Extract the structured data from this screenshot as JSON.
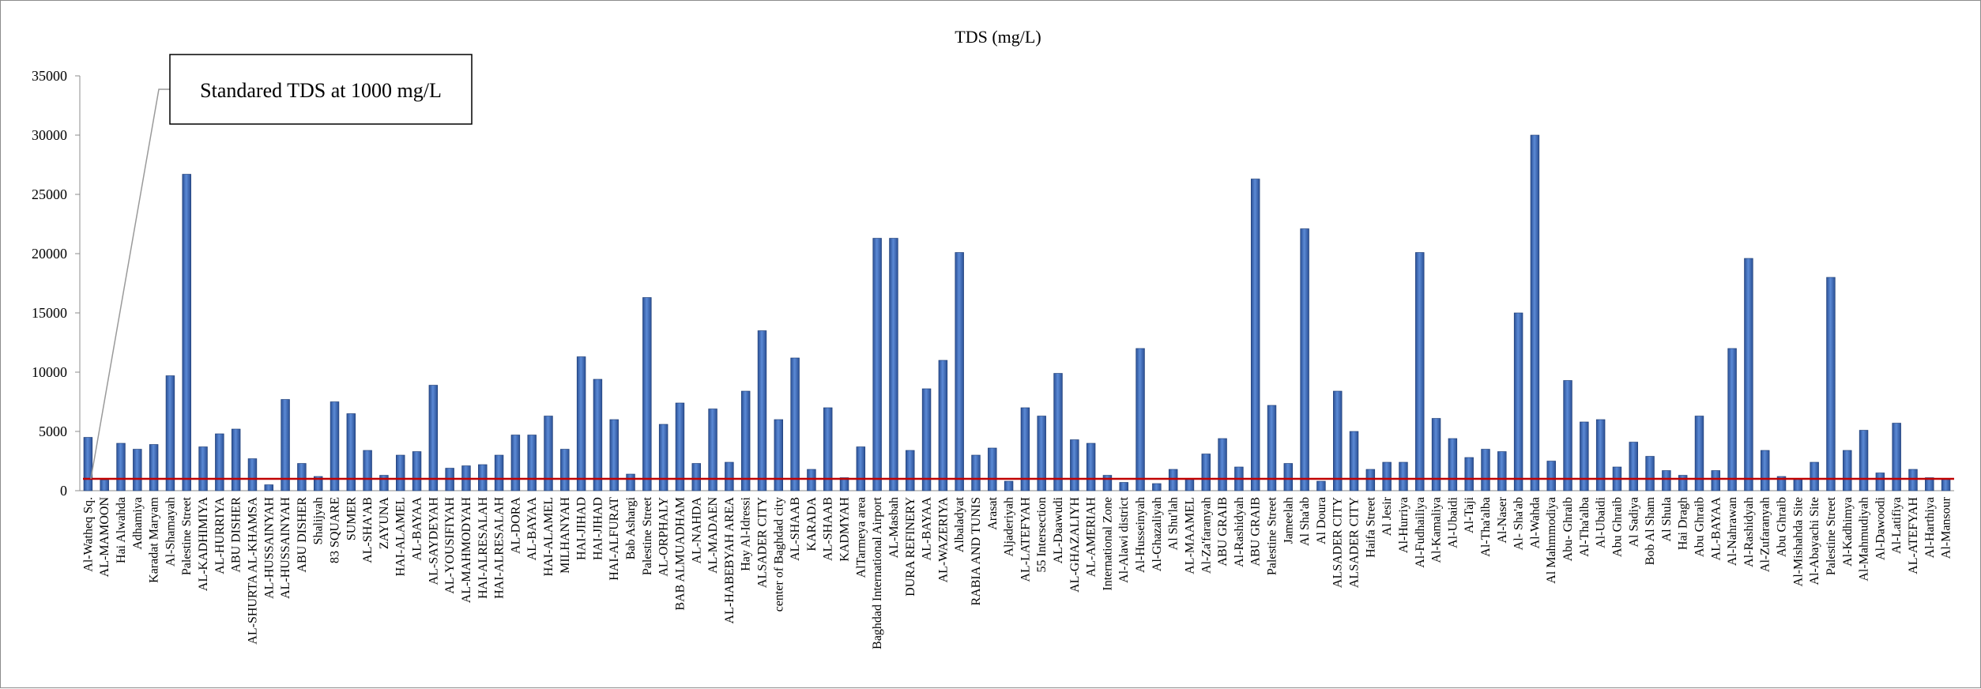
{
  "chart_data": {
    "type": "bar",
    "title": "TDS (mg/L)",
    "xlabel": "",
    "ylabel": "",
    "ylim": [
      0,
      35000
    ],
    "yticks": [
      0,
      5000,
      10000,
      15000,
      20000,
      25000,
      30000,
      35000
    ],
    "grid": false,
    "bar_color": "#4472c4",
    "reference_line": {
      "value": 1000,
      "color": "#c00000",
      "label": "Standared TDS at 1000 mg/L"
    },
    "categories": [
      "Al-Watheq Sq.",
      "AL-MAMOON",
      "Hai Alwahda",
      "Adhamiya",
      "Karadat Maryam",
      "Al-Shamayah",
      "Palestine Street",
      "AL-KADHIMIYA",
      "AL-HURRIYA",
      "ABU DISHER",
      "AL-SHURTA AL-KHAMSA",
      "AL-HUSSAINYAH",
      "AL-HUSSAINYAH",
      "ABU DISHER",
      "Shalijyah",
      "83 SQUARE",
      "SUMER",
      "AL-SHA'AB",
      "ZAYUNA",
      "HAI-ALAMEL",
      "AL-BAYAA",
      "AL-SAYDEYAH",
      "AL-YOUSIFIYAH",
      "AL-MAHMODYAH",
      "HAI-ALRESALAH",
      "HAI-ALRESALAH",
      "AL-DORA",
      "AL-BAYAA",
      "HAI-ALAMEL",
      "MILHANYAH",
      "HAI-JIHAD",
      "HAI-JIHAD",
      "HAI-ALFURAT",
      "Bab Ashargi",
      "Palestine Street",
      "AL-ORPHALY",
      "BAB ALMUADHAM",
      "AL-NAHDA",
      "AL-MADAEN",
      "AL-HABEBYAH AREA",
      "Hay Al-Idressi",
      "ALSADER CITY",
      "center of Baghdad city",
      "AL-SHAAB",
      "KARADA",
      "AL-SHAAB",
      "KADMYAH",
      "AlTarmeya area",
      "Baghdad International Airport",
      "AL-Masbah",
      "DURA REFINERY",
      "AL-BAYAA",
      "AL-WAZERIYA",
      "Albaladyat",
      "RABIA AND TUNIS",
      "Arasat",
      "Aljaderiyah",
      "AL-LATEFYAH",
      "55 Intersection",
      "AL-Daawudi",
      "AL-GHAZALIYH",
      "AL-AMERIAH",
      "International Zone",
      "Al-Alawi district",
      "Al-Husseinyah",
      "Al-Ghazaliyah",
      "Al Shu'lah",
      "AL-MAAMEL",
      "Al-Za'faranyah",
      "ABU GRAIB",
      "Al-Rashidyah",
      "ABU GRAIB",
      "Palestine Street",
      "Jameelah",
      "Al Sha'ab",
      "Al Doura",
      "ALSADER CITY",
      "ALSADER CITY",
      "Haifa Street",
      "Al Jesir",
      "Al-Hurriya",
      "Al-Fudhailiya",
      "Al-Kamaliya",
      "Al-Ubaidi",
      "Al-Taji",
      "Al-Tha'alba",
      "Al-Naser",
      "Al- Sha'ab",
      "Al-Wahda",
      "Al Mahmmodiya",
      "Abu- Ghraib",
      "Al-Tha'alba",
      "Al-Ubaidi",
      "Abu Ghraib",
      "Al Sadiya",
      "Bob Al Sham",
      "Al Shula",
      "Hai Dragh",
      "Abu Ghraib",
      "AL-BAYAA",
      "Al-Nahrawan",
      "Al-Rashidyah",
      "Al-Zufaranyah",
      "Abu Ghraib",
      "Al-Mishahda Site",
      "Al-Abayachi Site",
      "Palestine Street",
      "Al-Kadhimya",
      "Al-Mahmudiyah",
      "Al-Dawoodi",
      "Al-Latifiya",
      "AL-ATEFYAH",
      "Al-Harthiya",
      "Al-Mansour"
    ],
    "values": [
      4500,
      900,
      4000,
      3500,
      3900,
      9700,
      26700,
      3700,
      4800,
      5200,
      2700,
      500,
      7700,
      2300,
      1200,
      7500,
      6500,
      3400,
      1300,
      3000,
      3300,
      8900,
      1900,
      2100,
      2200,
      3000,
      4700,
      4700,
      6300,
      3500,
      11300,
      9400,
      6000,
      1400,
      16300,
      5600,
      7400,
      2300,
      6900,
      2400,
      8400,
      13500,
      6000,
      11200,
      1800,
      7000,
      1100,
      3700,
      21300,
      21300,
      3400,
      8600,
      11000,
      20100,
      3000,
      3600,
      800,
      7000,
      6300,
      9900,
      4300,
      4000,
      1300,
      700,
      12000,
      600,
      1800,
      1000,
      3100,
      4400,
      2000,
      26300,
      7200,
      2300,
      22100,
      800,
      8400,
      5000,
      1800,
      2400,
      2400,
      20100,
      6100,
      4400,
      2800,
      3500,
      3300,
      15000,
      30000,
      2500,
      9300,
      5800,
      6000,
      2000,
      4100,
      2900,
      1700,
      1300,
      6300,
      1700,
      12000,
      19600,
      3400,
      1200,
      1000,
      2400,
      18000,
      3400,
      5100,
      1500,
      5700,
      1800,
      1100,
      1000
    ]
  }
}
